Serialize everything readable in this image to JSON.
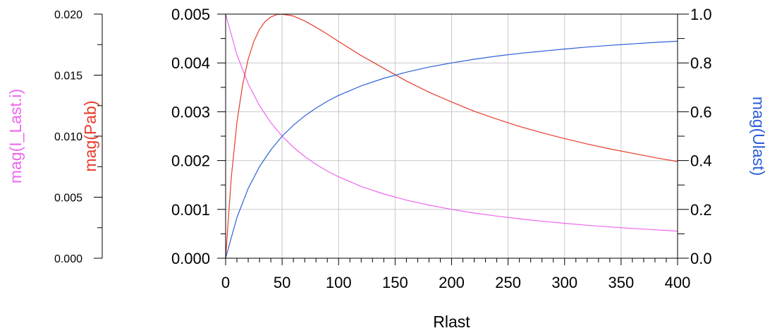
{
  "chart_data": {
    "type": "line",
    "x": {
      "label": "Rlast",
      "range": [
        0,
        400
      ],
      "ticks": [
        0,
        50,
        100,
        150,
        200,
        250,
        300,
        350,
        400
      ],
      "tick_labels": [
        "0",
        "50",
        "100",
        "150",
        "200",
        "250",
        "300",
        "350",
        "400"
      ],
      "minor_step": 10
    },
    "y_axes": [
      {
        "id": "current",
        "label": "mag(I_Last.i)",
        "color": "#ee66ee",
        "range": [
          0,
          0.02
        ],
        "ticks": [
          0,
          0.005,
          0.01,
          0.015,
          0.02
        ],
        "tick_labels": [
          "0.000",
          "0.005",
          "0.010",
          "0.015",
          "0.020"
        ],
        "position": "far-left"
      },
      {
        "id": "power",
        "label": "mag(Pab)",
        "color": "#e83c2c",
        "range": [
          0,
          0.005
        ],
        "ticks": [
          0,
          0.001,
          0.002,
          0.003,
          0.004,
          0.005
        ],
        "tick_labels": [
          "0.000",
          "0.001",
          "0.002",
          "0.003",
          "0.004",
          "0.005"
        ],
        "position": "left"
      },
      {
        "id": "voltage",
        "label": "mag(Ulast)",
        "color": "#2e5fd8",
        "range": [
          0,
          1.0
        ],
        "ticks": [
          0,
          0.2,
          0.4,
          0.6,
          0.8,
          1.0
        ],
        "tick_labels": [
          "0.0",
          "0.2",
          "0.4",
          "0.6",
          "0.8",
          "1.0"
        ],
        "position": "right"
      }
    ],
    "series": [
      {
        "axis": "current",
        "color": "#ee66ee",
        "x": [
          0,
          10,
          20,
          30,
          40,
          50,
          60,
          70,
          80,
          90,
          100,
          120,
          140,
          160,
          180,
          200,
          220,
          240,
          260,
          280,
          300,
          320,
          340,
          360,
          380,
          400
        ],
        "y": [
          0.02,
          0.01667,
          0.01429,
          0.0125,
          0.01111,
          0.01,
          0.00909,
          0.00833,
          0.00769,
          0.00714,
          0.00667,
          0.00588,
          0.00526,
          0.00476,
          0.00435,
          0.004,
          0.0037,
          0.00345,
          0.00323,
          0.00303,
          0.00286,
          0.0027,
          0.00256,
          0.00244,
          0.00233,
          0.00222
        ]
      },
      {
        "axis": "power",
        "color": "#e83c2c",
        "x": [
          0,
          5,
          10,
          15,
          20,
          25,
          30,
          35,
          40,
          45,
          50,
          60,
          70,
          80,
          90,
          100,
          120,
          140,
          160,
          180,
          200,
          220,
          240,
          260,
          280,
          300,
          320,
          340,
          360,
          380,
          400
        ],
        "y": [
          0,
          0.00165,
          0.00278,
          0.00355,
          0.00408,
          0.00444,
          0.00469,
          0.00485,
          0.00494,
          0.00499,
          0.005,
          0.00496,
          0.00486,
          0.00473,
          0.00459,
          0.00444,
          0.00415,
          0.00389,
          0.00363,
          0.0034,
          0.0032,
          0.00301,
          0.00285,
          0.0027,
          0.00257,
          0.00245,
          0.00234,
          0.00224,
          0.00215,
          0.00206,
          0.00198
        ]
      },
      {
        "axis": "voltage",
        "color": "#2e5fd8",
        "x": [
          0,
          10,
          20,
          30,
          40,
          50,
          60,
          70,
          80,
          90,
          100,
          120,
          140,
          160,
          180,
          200,
          220,
          240,
          260,
          280,
          300,
          320,
          340,
          360,
          380,
          400
        ],
        "y": [
          0,
          0.167,
          0.286,
          0.375,
          0.444,
          0.5,
          0.545,
          0.583,
          0.615,
          0.643,
          0.667,
          0.706,
          0.737,
          0.762,
          0.783,
          0.8,
          0.815,
          0.828,
          0.839,
          0.848,
          0.857,
          0.865,
          0.872,
          0.878,
          0.884,
          0.889
        ]
      }
    ],
    "grid": true
  }
}
